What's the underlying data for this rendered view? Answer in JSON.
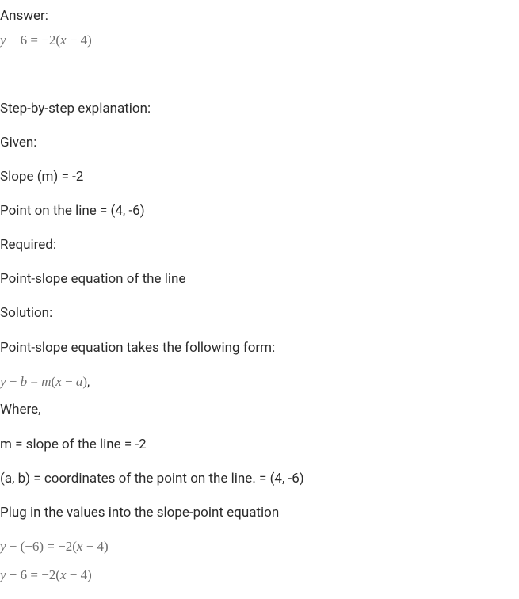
{
  "answer": {
    "label": "Answer:",
    "equation": "y + 6 = −2(x − 4)"
  },
  "explanation": {
    "title": "Step-by-step explanation:",
    "given_label": "Given:",
    "slope_text": "Slope (m) = -2",
    "point_text": "Point on the line = (4, -6)",
    "required_label": "Required:",
    "required_text": "Point-slope equation of the line",
    "solution_label": "Solution:",
    "solution_intro": "Point-slope equation takes the following form:",
    "form_equation": "y − b = m(x − a)",
    "where_label": "Where,",
    "m_text": "m = slope of the line = -2",
    "ab_text": "(a, b) = coordinates of the point on the line. = (4, -6)",
    "plug_text": "Plug in the values into the slope-point equation",
    "eq_step1": "y − (−6) = −2(x − 4)",
    "eq_step2": "y + 6 = −2(x − 4)"
  },
  "colors": {
    "text_primary": "#2b2b2b",
    "text_equation": "#6d6d6d",
    "background": "#ffffff"
  },
  "typography": {
    "body_fontsize": 17,
    "equation_fontsize": 17,
    "equation_family": "Times New Roman"
  }
}
